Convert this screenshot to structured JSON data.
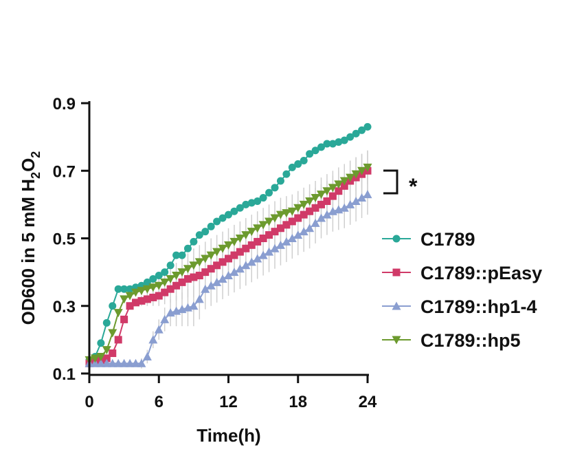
{
  "chart_data": {
    "type": "line",
    "xlabel": "Time(h)",
    "ylabel": {
      "prefix": "OD600 in 5 mM H",
      "sub1": "2",
      "mid": "O",
      "sub2": "2"
    },
    "xlim": [
      0,
      24
    ],
    "ylim": [
      0.1,
      0.9
    ],
    "xticks": [
      "0",
      "6",
      "12",
      "18",
      "24"
    ],
    "yticks": [
      "0.1",
      "0.3",
      "0.5",
      "0.7",
      "0.9"
    ],
    "annotation": "*",
    "legend_position": "right",
    "series": [
      {
        "name": "C1789",
        "color": "#2aa898",
        "marker": "circle",
        "x": [
          0,
          0.5,
          1,
          1.5,
          2,
          2.5,
          3,
          3.5,
          4,
          4.5,
          5,
          5.5,
          6,
          6.5,
          7,
          7.5,
          8,
          8.5,
          9,
          9.5,
          10,
          10.5,
          11,
          11.5,
          12,
          12.5,
          13,
          13.5,
          14,
          14.5,
          15,
          15.5,
          16,
          16.5,
          17,
          17.5,
          18,
          18.5,
          19,
          19.5,
          20,
          20.5,
          21,
          21.5,
          22,
          22.5,
          23,
          23.5,
          24
        ],
        "y": [
          0.14,
          0.15,
          0.19,
          0.25,
          0.3,
          0.35,
          0.35,
          0.35,
          0.355,
          0.36,
          0.37,
          0.38,
          0.39,
          0.4,
          0.42,
          0.45,
          0.45,
          0.47,
          0.49,
          0.51,
          0.52,
          0.535,
          0.55,
          0.56,
          0.57,
          0.58,
          0.59,
          0.6,
          0.605,
          0.61,
          0.62,
          0.635,
          0.65,
          0.67,
          0.69,
          0.71,
          0.72,
          0.73,
          0.75,
          0.76,
          0.77,
          0.78,
          0.78,
          0.785,
          0.79,
          0.8,
          0.81,
          0.82,
          0.83
        ],
        "error": 0.0
      },
      {
        "name": "C1789::pEasy",
        "color": "#d03a68",
        "marker": "square",
        "x": [
          0,
          0.5,
          1,
          1.5,
          2,
          2.5,
          3,
          3.5,
          4,
          4.5,
          5,
          5.5,
          6,
          6.5,
          7,
          7.5,
          8,
          8.5,
          9,
          9.5,
          10,
          10.5,
          11,
          11.5,
          12,
          12.5,
          13,
          13.5,
          14,
          14.5,
          15,
          15.5,
          16,
          16.5,
          17,
          17.5,
          18,
          18.5,
          19,
          19.5,
          20,
          20.5,
          21,
          21.5,
          22,
          22.5,
          23,
          23.5,
          24
        ],
        "y": [
          0.13,
          0.135,
          0.14,
          0.145,
          0.16,
          0.2,
          0.26,
          0.3,
          0.31,
          0.315,
          0.32,
          0.325,
          0.33,
          0.34,
          0.35,
          0.36,
          0.37,
          0.38,
          0.385,
          0.39,
          0.4,
          0.41,
          0.42,
          0.43,
          0.44,
          0.45,
          0.46,
          0.47,
          0.48,
          0.49,
          0.5,
          0.51,
          0.52,
          0.53,
          0.54,
          0.55,
          0.56,
          0.57,
          0.58,
          0.59,
          0.6,
          0.61,
          0.625,
          0.64,
          0.655,
          0.67,
          0.68,
          0.69,
          0.7
        ],
        "error": 0.06
      },
      {
        "name": "C1789::hp1-4",
        "color": "#8a9ed0",
        "marker": "triangle-up",
        "x": [
          0,
          0.5,
          1,
          1.5,
          2,
          2.5,
          3,
          3.5,
          4,
          4.5,
          5,
          5.5,
          6,
          6.5,
          7,
          7.5,
          8,
          8.5,
          9,
          9.5,
          10,
          10.5,
          11,
          11.5,
          12,
          12.5,
          13,
          13.5,
          14,
          14.5,
          15,
          15.5,
          16,
          16.5,
          17,
          17.5,
          18,
          18.5,
          19,
          19.5,
          20,
          20.5,
          21,
          21.5,
          22,
          22.5,
          23,
          23.5,
          24
        ],
        "y": [
          0.13,
          0.13,
          0.13,
          0.13,
          0.13,
          0.13,
          0.13,
          0.13,
          0.13,
          0.13,
          0.15,
          0.2,
          0.23,
          0.26,
          0.28,
          0.285,
          0.29,
          0.295,
          0.3,
          0.32,
          0.35,
          0.36,
          0.37,
          0.38,
          0.39,
          0.4,
          0.41,
          0.42,
          0.43,
          0.44,
          0.45,
          0.46,
          0.47,
          0.48,
          0.49,
          0.5,
          0.51,
          0.52,
          0.53,
          0.545,
          0.56,
          0.57,
          0.58,
          0.585,
          0.59,
          0.6,
          0.61,
          0.62,
          0.63
        ],
        "error": 0.06
      },
      {
        "name": "C1789::hp5",
        "color": "#6c9a2e",
        "marker": "triangle-down",
        "x": [
          0,
          0.5,
          1,
          1.5,
          2,
          2.5,
          3,
          3.5,
          4,
          4.5,
          5,
          5.5,
          6,
          6.5,
          7,
          7.5,
          8,
          8.5,
          9,
          9.5,
          10,
          10.5,
          11,
          11.5,
          12,
          12.5,
          13,
          13.5,
          14,
          14.5,
          15,
          15.5,
          16,
          16.5,
          17,
          17.5,
          18,
          18.5,
          19,
          19.5,
          20,
          20.5,
          21,
          21.5,
          22,
          22.5,
          23,
          23.5,
          24
        ],
        "y": [
          0.14,
          0.145,
          0.15,
          0.17,
          0.22,
          0.28,
          0.32,
          0.33,
          0.34,
          0.345,
          0.35,
          0.355,
          0.36,
          0.37,
          0.38,
          0.39,
          0.4,
          0.41,
          0.42,
          0.43,
          0.44,
          0.45,
          0.46,
          0.47,
          0.48,
          0.49,
          0.5,
          0.51,
          0.52,
          0.53,
          0.54,
          0.55,
          0.56,
          0.57,
          0.575,
          0.58,
          0.59,
          0.6,
          0.61,
          0.62,
          0.63,
          0.64,
          0.65,
          0.66,
          0.67,
          0.68,
          0.69,
          0.7,
          0.71
        ],
        "error": 0.05
      }
    ]
  }
}
